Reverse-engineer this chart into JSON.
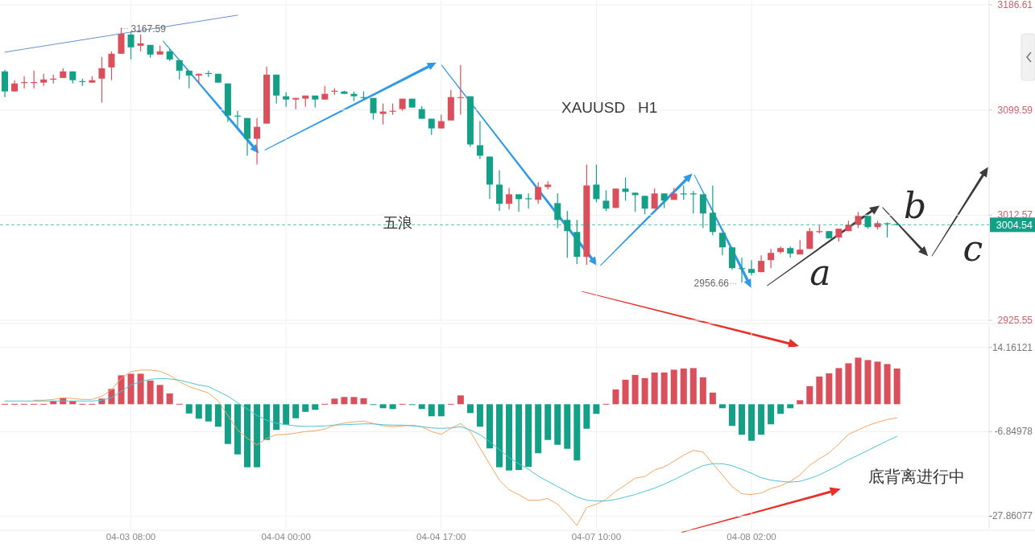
{
  "chart_data": [
    {
      "type": "candlestick",
      "title": "XAUUSD   H1",
      "categories": [
        null,
        null,
        null,
        null,
        null,
        null,
        null,
        null,
        null,
        null,
        null,
        null,
        null,
        null,
        null,
        null,
        null,
        null,
        null,
        null,
        null,
        null,
        null,
        null,
        null,
        null,
        null,
        null,
        null,
        null,
        null,
        null,
        null,
        null,
        null,
        null,
        null,
        null,
        null,
        null,
        null,
        null,
        null,
        null,
        null,
        null,
        null,
        null,
        null,
        null,
        null,
        null,
        null,
        null,
        null,
        null,
        null,
        null,
        null,
        null,
        null,
        null,
        null,
        null,
        null,
        null,
        null,
        null,
        null,
        null,
        null,
        null,
        null,
        null,
        null,
        null,
        null,
        null,
        null,
        null,
        null,
        null,
        null,
        null,
        null,
        null,
        null,
        null,
        null,
        null,
        null,
        null,
        null,
        null,
        null,
        null,
        null,
        null,
        null,
        null,
        null,
        null
      ],
      "series": [
        {
          "type": "line",
          "color": "#6a8fc8",
          "values": [
            3147.4,
            null,
            null,
            null,
            null,
            null,
            null,
            null,
            null,
            null,
            null,
            null,
            null,
            null,
            null,
            null,
            null,
            null,
            null,
            null,
            null,
            null,
            null,
            null,
            3178.0,
            null,
            null,
            null,
            null,
            null,
            null,
            null,
            null,
            null,
            null,
            null,
            null,
            null,
            null,
            null,
            null,
            null,
            null,
            null,
            null,
            null,
            null,
            null,
            null,
            null,
            null,
            null,
            null,
            null,
            null,
            null,
            null,
            null,
            null,
            null,
            null,
            null,
            null,
            null,
            null,
            null,
            null,
            null,
            null,
            null,
            null,
            null,
            null,
            null,
            null,
            null,
            null,
            null,
            null,
            null,
            null,
            null,
            null,
            null,
            null,
            null,
            null,
            null,
            null,
            null,
            null,
            null,
            null,
            null,
            null,
            null,
            null,
            null,
            null,
            null,
            null,
            null
          ]
        }
      ],
      "ohlc": [
        [
          3131.5,
          3132.8,
          3110.2,
          3114.9
        ],
        [
          3114.9,
          3124.2,
          3114.9,
          3121.5
        ],
        [
          3122.2,
          3127.5,
          3117.5,
          3122.6
        ],
        [
          3122.2,
          3132.1,
          3117.5,
          3122.6
        ],
        [
          3122.2,
          3129.5,
          3119.5,
          3124.8
        ],
        [
          3124.8,
          3128.8,
          3121.5,
          3125.5
        ],
        [
          3126.1,
          3134.1,
          3126.1,
          3131.5
        ],
        [
          3131.5,
          3131.5,
          3121.5,
          3124.2
        ],
        [
          3123.5,
          3125.5,
          3119.5,
          3122.8
        ],
        [
          3122.2,
          3127.5,
          3122.2,
          3124.2
        ],
        [
          3125.5,
          3143.4,
          3105.6,
          3134.1
        ],
        [
          3134.8,
          3148.1,
          3124.2,
          3146.1
        ],
        [
          3146.1,
          3167.59,
          3146.1,
          3162.7
        ],
        [
          3162.0,
          3164.7,
          3141.4,
          3151.4
        ],
        [
          3152.7,
          3162.0,
          3148.1,
          3154.7
        ],
        [
          3153.4,
          3153.4,
          3142.8,
          3145.4
        ],
        [
          3145.4,
          3152.7,
          3145.4,
          3148.1
        ],
        [
          3148.1,
          3150.1,
          3140.1,
          3141.4
        ],
        [
          3140.8,
          3140.8,
          3124.8,
          3132.1
        ],
        [
          3132.1,
          3132.1,
          3117.5,
          3128.1
        ],
        [
          3128.1,
          3129.5,
          3121.5,
          3129.5
        ],
        [
          3130.1,
          3132.1,
          3126.8,
          3129.5
        ],
        [
          3129.5,
          3129.5,
          3122.2,
          3122.2
        ],
        [
          3121.5,
          3121.5,
          3089.6,
          3094.9
        ],
        [
          3094.9,
          3098.9,
          3085.6,
          3094.3
        ],
        [
          3092.9,
          3092.9,
          3061.7,
          3075.7
        ],
        [
          3075.7,
          3092.9,
          3054.4,
          3085.6
        ],
        [
          3088.3,
          3135.4,
          3088.3,
          3128.8
        ],
        [
          3128.8,
          3128.8,
          3104.9,
          3111.5
        ],
        [
          3110.9,
          3114.2,
          3102.2,
          3108.2
        ],
        [
          3108.2,
          3109.5,
          3100.2,
          3109.5
        ],
        [
          3108.9,
          3111.5,
          3102.2,
          3111.5
        ],
        [
          3111.5,
          3111.5,
          3101.6,
          3108.2
        ],
        [
          3108.2,
          3119.5,
          3108.2,
          3112.9
        ],
        [
          3114.9,
          3117.5,
          3112.2,
          3115.5
        ],
        [
          3114.9,
          3115.5,
          3112.9,
          3112.9
        ],
        [
          3112.9,
          3114.9,
          3106.9,
          3110.9
        ],
        [
          3110.2,
          3114.9,
          3108.2,
          3109.5
        ],
        [
          3109.5,
          3109.5,
          3091.6,
          3096.9
        ],
        [
          3096.3,
          3104.9,
          3087.6,
          3098.3
        ],
        [
          3098.3,
          3104.9,
          3095.6,
          3098.9
        ],
        [
          3100.3,
          3108.9,
          3098.9,
          3108.9
        ],
        [
          3108.9,
          3108.9,
          3101.6,
          3101.6
        ],
        [
          3100.3,
          3102.9,
          3092.3,
          3092.3
        ],
        [
          3092.3,
          3092.3,
          3079.0,
          3084.3
        ],
        [
          3084.3,
          3095.6,
          3084.3,
          3090.3
        ],
        [
          3090.9,
          3116.2,
          3090.9,
          3110.2
        ],
        [
          3109.5,
          3136.8,
          3095.6,
          3110.2
        ],
        [
          3110.9,
          3110.9,
          3069.0,
          3071.0
        ],
        [
          3070.4,
          3090.3,
          3059.1,
          3061.7
        ],
        [
          3061.0,
          3061.0,
          3025.9,
          3037.8
        ],
        [
          3037.8,
          3049.8,
          3015.9,
          3021.9
        ],
        [
          3021.9,
          3035.1,
          3017.2,
          3029.8
        ],
        [
          3029.8,
          3029.8,
          3015.2,
          3025.8
        ],
        [
          3026.5,
          3030.5,
          3017.9,
          3025.8
        ],
        [
          3025.2,
          3039.8,
          3021.9,
          3035.8
        ],
        [
          3035.8,
          3040.5,
          3033.8,
          3037.8
        ],
        [
          3022.5,
          3030.5,
          3001.9,
          3008.6
        ],
        [
          3008.6,
          3015.9,
          2977.3,
          2999.3
        ],
        [
          2998.6,
          3008.6,
          2972.0,
          2978.0
        ],
        [
          2978.0,
          3054.4,
          2971.4,
          3037.1
        ],
        [
          3037.8,
          3054.4,
          3023.2,
          3025.8
        ],
        [
          3024.5,
          3033.1,
          3015.9,
          3017.9
        ],
        [
          3018.5,
          3034.5,
          3018.5,
          3034.5
        ],
        [
          3034.5,
          3043.8,
          3024.5,
          3031.8
        ],
        [
          3031.1,
          3031.1,
          3015.2,
          3029.1
        ],
        [
          3028.5,
          3028.5,
          3013.2,
          3017.9
        ],
        [
          3017.9,
          3034.5,
          3017.9,
          3030.5
        ],
        [
          3030.5,
          3030.5,
          3018.5,
          3024.5
        ],
        [
          3025.2,
          3035.1,
          3025.2,
          3030.5
        ],
        [
          3030.5,
          3037.1,
          3025.2,
          3030.2
        ],
        [
          3030.5,
          3032.5,
          3013.9,
          3029.8
        ],
        [
          3029.8,
          3029.8,
          3001.9,
          3013.9
        ],
        [
          3014.5,
          3037.1,
          2996.0,
          2998.6
        ],
        [
          2997.9,
          2997.9,
          2979.3,
          2985.9
        ],
        [
          2985.9,
          2985.9,
          2967.4,
          2968.7
        ],
        [
          2968.7,
          2977.3,
          2956.66,
          2968.0
        ],
        [
          2968.0,
          2975.3,
          2962.7,
          2964.7
        ],
        [
          2965.4,
          2979.3,
          2965.4,
          2974.7
        ],
        [
          2975.3,
          2984.6,
          2968.7,
          2981.3
        ],
        [
          2982.0,
          2986.6,
          2980.7,
          2985.3
        ],
        [
          2985.3,
          2986.6,
          2977.3,
          2980.7
        ],
        [
          2980.0,
          2992.0,
          2980.0,
          2984.0
        ],
        [
          2984.6,
          3001.9,
          2984.6,
          2999.3
        ],
        [
          2998.6,
          3003.9,
          2997.3,
          2999.3
        ],
        [
          2999.3,
          2999.3,
          2993.3,
          2993.3
        ],
        [
          2994.0,
          3001.3,
          2990.6,
          3001.3
        ],
        [
          2999.3,
          3007.9,
          2999.3,
          3004.6
        ],
        [
          3004.6,
          3015.2,
          3001.9,
          3011.9
        ],
        [
          3011.9,
          3011.9,
          3001.3,
          3002.6
        ],
        [
          3002.6,
          3007.9,
          3000.6,
          3005.9
        ],
        [
          3005.9,
          3006.5,
          2994.0,
          3005.2
        ],
        [
          3005.2,
          3006.0,
          3003.9,
          3004.54
        ],
        null,
        null,
        null,
        null,
        null,
        null,
        null,
        null,
        null
      ],
      "colors": [
        "#14a086",
        "#d9505c",
        "#d9505c",
        "#d9505c",
        "#d9505c",
        "#d9505c",
        "#d9505c",
        "#14a086",
        "#14a086",
        "#d9505c",
        "#d9505c",
        "#d9505c",
        "#d9505c",
        "#14a086",
        "#d9505c",
        "#14a086",
        "#d9505c",
        "#14a086",
        "#14a086",
        "#14a086",
        "#d9505c",
        "#14a086",
        "#14a086",
        "#14a086",
        "#14a086",
        "#14a086",
        "#d9505c",
        "#d9505c",
        "#14a086",
        "#14a086",
        "#d9505c",
        "#d9505c",
        "#14a086",
        "#d9505c",
        "#d9505c",
        "#14a086",
        "#14a086",
        "#14a086",
        "#14a086",
        "#d9505c",
        "#d9505c",
        "#d9505c",
        "#14a086",
        "#14a086",
        "#14a086",
        "#d9505c",
        "#d9505c",
        "#d9505c",
        "#14a086",
        "#14a086",
        "#14a086",
        "#14a086",
        "#d9505c",
        "#14a086",
        "#14a086",
        "#d9505c",
        "#d9505c",
        "#14a086",
        "#14a086",
        "#14a086",
        "#d9505c",
        "#14a086",
        "#14a086",
        "#d9505c",
        "#14a086",
        "#14a086",
        "#14a086",
        "#d9505c",
        "#14a086",
        "#d9505c",
        "#14a086",
        "#14a086",
        "#14a086",
        "#14a086",
        "#14a086",
        "#14a086",
        "#14a086",
        "#14a086",
        "#d9505c",
        "#d9505c",
        "#d9505c",
        "#14a086",
        "#d9505c",
        "#d9505c",
        "#d9505c",
        "#14a086",
        "#d9505c",
        "#d9505c",
        "#d9505c",
        "#14a086",
        "#d9505c",
        "#14a086",
        "#14a086",
        null,
        null,
        null,
        null,
        null,
        null,
        null,
        null,
        null
      ],
      "ylim": [
        2924.2,
        3189.9
      ],
      "yticks": [
        3186.61,
        3099.59,
        3012.57,
        2925.55
      ],
      "grid": true,
      "tick_labels": "y",
      "ref_lines": [
        {
          "axis": "y",
          "value": 3004.54,
          "label": "3004.54",
          "color": "#14a086",
          "line_style": "dashed"
        }
      ],
      "annotations": [
        "五浪",
        "a",
        "b",
        "c",
        "3167.59",
        "2956.66"
      ]
    },
    {
      "type": "bar",
      "categories": [
        null,
        null,
        null,
        null,
        null,
        null,
        null,
        null,
        null,
        null,
        null,
        null,
        null,
        "04-03 08:00",
        null,
        null,
        null,
        null,
        null,
        null,
        null,
        null,
        null,
        null,
        null,
        null,
        null,
        null,
        null,
        "04-04 00:00",
        null,
        null,
        null,
        null,
        null,
        null,
        null,
        null,
        null,
        null,
        null,
        null,
        null,
        null,
        null,
        "04-04 17:00",
        null,
        null,
        null,
        null,
        null,
        null,
        null,
        null,
        null,
        null,
        null,
        null,
        null,
        null,
        null,
        "04-07 10:00",
        null,
        null,
        null,
        null,
        null,
        null,
        null,
        null,
        null,
        null,
        null,
        null,
        null,
        null,
        null,
        "04-08 02:00",
        null,
        null,
        null,
        null,
        null,
        null,
        null,
        null,
        null,
        null,
        null,
        null,
        null,
        null,
        null,
        null,
        null,
        null,
        null,
        null,
        null,
        null,
        null,
        null
      ],
      "series": [
        {
          "values": [
            0.1,
            0.1,
            0.1,
            0.1,
            0.1,
            0.8,
            1.6,
            0.8,
            0.1,
            0.1,
            1.4,
            3.8,
            7.2,
            7.6,
            7.6,
            5.9,
            4.8,
            2.7,
            0.1,
            -2.3,
            -3.6,
            -4.3,
            -5.6,
            -9.9,
            -12.5,
            -15.7,
            -15.7,
            -8.9,
            -6.4,
            -5.1,
            -3.5,
            -1.9,
            -1.4,
            0.1,
            1.4,
            1.8,
            1.8,
            1.5,
            -0.1,
            -1.0,
            -1.2,
            0.1,
            -0.1,
            -1.2,
            -3.0,
            -3.0,
            0.1,
            2.2,
            -2.2,
            -5.6,
            -11.0,
            -15.7,
            -16.5,
            -16.4,
            -15.6,
            -12.2,
            -8.9,
            -10.1,
            -11.1,
            -14.0,
            -6.1,
            -2.4,
            0.1,
            3.7,
            6.1,
            7.3,
            6.5,
            7.9,
            7.9,
            8.6,
            8.9,
            9.0,
            6.7,
            2.9,
            -1.0,
            -5.4,
            -7.6,
            -9.1,
            -7.6,
            -5.0,
            -2.4,
            -1.0,
            1.0,
            4.5,
            6.9,
            7.7,
            9.0,
            10.2,
            11.6,
            11.0,
            10.6,
            10.0,
            8.9,
            null,
            null,
            null,
            null,
            null,
            null,
            null,
            null,
            null
          ],
          "colors": [
            "#d9505c",
            "#d9505c",
            "#d9505c",
            "#d9505c",
            "#d9505c",
            "#d9505c",
            "#d9505c",
            "#d9505c",
            "#d9505c",
            "#d9505c",
            "#d9505c",
            "#d9505c",
            "#d9505c",
            "#d9505c",
            "#d9505c",
            "#d9505c",
            "#d9505c",
            "#d9505c",
            "#d9505c",
            "#14a086",
            "#14a086",
            "#14a086",
            "#14a086",
            "#14a086",
            "#14a086",
            "#14a086",
            "#14a086",
            "#14a086",
            "#14a086",
            "#14a086",
            "#14a086",
            "#14a086",
            "#14a086",
            "#d9505c",
            "#d9505c",
            "#d9505c",
            "#d9505c",
            "#d9505c",
            "#14a086",
            "#14a086",
            "#14a086",
            "#d9505c",
            "#14a086",
            "#14a086",
            "#14a086",
            "#14a086",
            "#d9505c",
            "#d9505c",
            "#14a086",
            "#14a086",
            "#14a086",
            "#14a086",
            "#14a086",
            "#14a086",
            "#14a086",
            "#14a086",
            "#14a086",
            "#14a086",
            "#14a086",
            "#14a086",
            "#14a086",
            "#14a086",
            "#d9505c",
            "#d9505c",
            "#d9505c",
            "#d9505c",
            "#d9505c",
            "#d9505c",
            "#d9505c",
            "#d9505c",
            "#d9505c",
            "#d9505c",
            "#d9505c",
            "#d9505c",
            "#14a086",
            "#14a086",
            "#14a086",
            "#14a086",
            "#14a086",
            "#14a086",
            "#14a086",
            "#14a086",
            "#d9505c",
            "#d9505c",
            "#d9505c",
            "#d9505c",
            "#d9505c",
            "#d9505c",
            "#d9505c",
            "#d9505c",
            "#d9505c",
            "#d9505c",
            "#d9505c",
            null,
            null,
            null,
            null,
            null,
            null,
            null,
            null,
            null
          ]
        },
        {
          "type": "line",
          "color": "#f2a666",
          "values": [
            null,
            null,
            null,
            1.0,
            1.0,
            1.2,
            1.6,
            1.4,
            1.2,
            1.2,
            2.0,
            3.6,
            6.4,
            8.1,
            8.5,
            8.5,
            8.2,
            7.2,
            5.6,
            4.4,
            3.6,
            2.8,
            0.8,
            -2.8,
            -6.4,
            -8.5,
            -10.1,
            -8.5,
            -7.6,
            -7.5,
            -7.2,
            -6.8,
            -6.6,
            -6.2,
            -5.2,
            -4.7,
            -4.4,
            -4.2,
            -4.8,
            -5.4,
            -5.6,
            -5.4,
            -5.2,
            -5.6,
            -6.8,
            -7.5,
            -6.0,
            -4.8,
            -6.8,
            -10.9,
            -14.9,
            -18.9,
            -21.3,
            -22.5,
            -23.9,
            -23.9,
            -23.5,
            -24.9,
            -27.4,
            -30.2,
            -25.7,
            -24.9,
            -23.7,
            -21.7,
            -20.1,
            -18.4,
            -18.0,
            -16.4,
            -15.6,
            -14.2,
            -12.7,
            -11.5,
            -11.9,
            -14.8,
            -17.6,
            -20.5,
            -22.3,
            -22.5,
            -22.1,
            -21.0,
            -20.3,
            -19.2,
            -17.6,
            -15.2,
            -13.6,
            -12.1,
            -9.9,
            -7.5,
            -6.4,
            -5.3,
            -4.5,
            -3.8,
            -3.4,
            null,
            null,
            null,
            null,
            null,
            null,
            null,
            null,
            null
          ]
        },
        {
          "type": "line",
          "color": "#4fc3d1",
          "values": [
            0.8,
            0.8,
            0.8,
            0.8,
            0.8,
            0.8,
            0.8,
            0.8,
            0.8,
            0.8,
            1.0,
            1.6,
            3.2,
            4.8,
            5.6,
            6.2,
            6.4,
            6.3,
            6.0,
            5.4,
            4.8,
            4.4,
            3.2,
            2.0,
            0.4,
            -1.2,
            -2.8,
            -4.0,
            -4.7,
            -5.1,
            -5.4,
            -5.5,
            -5.5,
            -5.4,
            -5.2,
            -5.1,
            -5.0,
            -4.9,
            -4.9,
            -5.1,
            -5.2,
            -5.2,
            -5.4,
            -5.6,
            -5.9,
            -6.0,
            -5.9,
            -5.6,
            -6.4,
            -7.6,
            -9.3,
            -11.3,
            -13.3,
            -14.8,
            -16.2,
            -17.9,
            -19.2,
            -20.5,
            -21.8,
            -23.1,
            -23.9,
            -24.1,
            -24.1,
            -23.7,
            -23.1,
            -22.5,
            -21.7,
            -20.9,
            -19.9,
            -18.8,
            -17.6,
            -16.4,
            -15.3,
            -14.8,
            -14.8,
            -15.3,
            -16.2,
            -17.2,
            -18.3,
            -18.9,
            -19.2,
            -19.4,
            -19.2,
            -18.5,
            -17.6,
            -16.4,
            -15.2,
            -13.8,
            -12.7,
            -11.5,
            -10.3,
            -9.1,
            -8.0,
            null,
            null,
            null,
            null,
            null,
            null,
            null,
            null,
            null
          ]
        }
      ],
      "ylim": [
        -31,
        19.5
      ],
      "yticks": [
        14.16121,
        -6.84978,
        -27.86077
      ],
      "grid": true,
      "annotations": [
        "底背离进行中"
      ]
    }
  ]
}
